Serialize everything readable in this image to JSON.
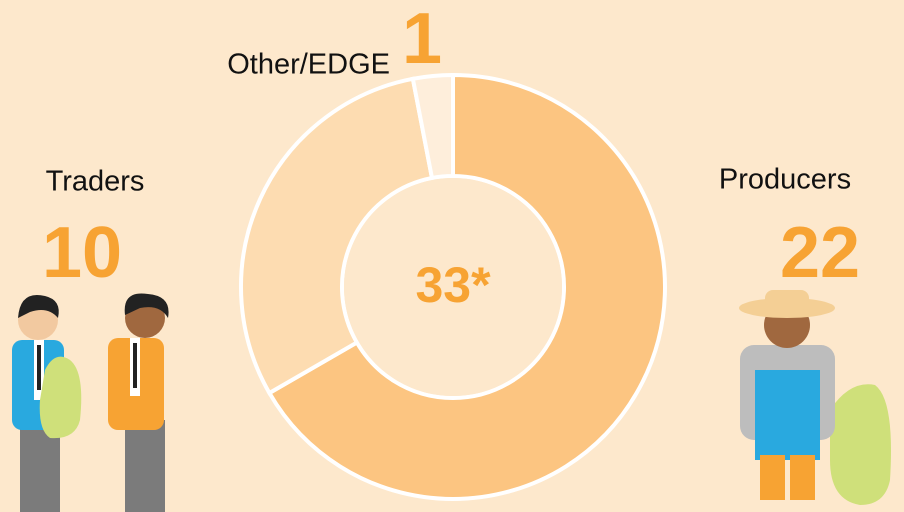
{
  "chart_data": {
    "type": "donut",
    "categories": [
      "Producers",
      "Traders",
      "Other/EDGE"
    ],
    "values": [
      22,
      10,
      1
    ],
    "colors": [
      "#fcc581",
      "#fddcb1",
      "#feeedb"
    ],
    "label_color": "#f7a333",
    "center_label": "33*"
  }
}
